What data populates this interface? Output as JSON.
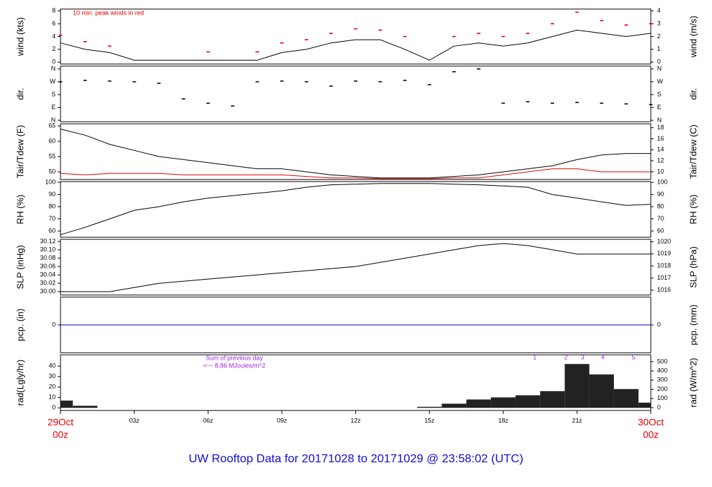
{
  "chart_data": [
    {
      "type": "line",
      "ylabel": "wind (kts)",
      "y2label": "wind (m/s)",
      "notes": [
        "10 min. peak winds in red"
      ],
      "xlim": [
        0,
        24
      ],
      "x": [
        0,
        1,
        2,
        3,
        4,
        5,
        6,
        7,
        8,
        9,
        10,
        11,
        12,
        13,
        14,
        15,
        16,
        17,
        18,
        19,
        20,
        21,
        22,
        23,
        24
      ],
      "ylim": [
        -0.3,
        8.3
      ],
      "yticks": [
        0,
        2,
        4,
        6,
        8
      ],
      "y2lim": [
        -0.15,
        4.15
      ],
      "y2ticks": [
        0,
        1,
        2,
        3,
        4
      ],
      "series": [
        {
          "color": "#000000",
          "values": [
            3,
            2,
            1.5,
            0.3,
            0.3,
            0.3,
            0.3,
            0.3,
            0.3,
            1.5,
            2,
            3,
            3.5,
            3.5,
            2,
            0.3,
            2.5,
            3,
            2.5,
            3,
            4,
            5,
            4.5,
            4,
            4.5
          ]
        },
        {
          "type": "scatter",
          "color": "#e00000",
          "values": [
            4.2,
            3.2,
            2.5,
            null,
            null,
            null,
            1.6,
            null,
            1.6,
            3,
            3.5,
            4.5,
            5.2,
            5,
            4,
            null,
            4,
            4.5,
            4,
            4.5,
            6,
            7.8,
            6.5,
            5.8,
            6
          ]
        }
      ]
    },
    {
      "type": "scatter",
      "ylabel": "dir.",
      "y2label": "dir.",
      "xlim": [
        0,
        24
      ],
      "x": [
        0,
        1,
        2,
        3,
        4,
        5,
        6,
        7,
        8,
        9,
        10,
        11,
        12,
        13,
        14,
        15,
        16,
        17,
        18,
        19,
        20,
        21,
        22,
        23,
        24
      ],
      "ylim": [
        -10,
        380
      ],
      "yticks": [
        {
          "value": 360,
          "label": "N"
        },
        {
          "value": 270,
          "label": "W"
        },
        {
          "value": 180,
          "label": "S"
        },
        {
          "value": 90,
          "label": "E"
        },
        {
          "value": 0,
          "label": "N"
        }
      ],
      "y2lim": [
        -10,
        380
      ],
      "y2ticks": [
        {
          "value": 360,
          "label": "N"
        },
        {
          "value": 270,
          "label": "W"
        },
        {
          "value": 180,
          "label": "S"
        },
        {
          "value": 90,
          "label": "E"
        },
        {
          "value": 0,
          "label": "N"
        }
      ],
      "series": [
        {
          "color": "#000000",
          "values": [
            270,
            280,
            275,
            270,
            260,
            150,
            120,
            100,
            270,
            275,
            270,
            240,
            275,
            270,
            280,
            250,
            340,
            360,
            120,
            130,
            120,
            125,
            120,
            115,
            110
          ]
        }
      ]
    },
    {
      "type": "line",
      "ylabel": "Tair/Tdew (F)",
      "y2label": "Tair/Tdew (C)",
      "xlim": [
        0,
        24
      ],
      "x": [
        0,
        1,
        2,
        3,
        4,
        5,
        6,
        7,
        8,
        9,
        10,
        11,
        12,
        13,
        14,
        15,
        16,
        17,
        18,
        19,
        20,
        21,
        22,
        23,
        24
      ],
      "ylim": [
        47.5,
        65.7
      ],
      "yticks": [
        50,
        55,
        60,
        65
      ],
      "y2lim": [
        8.6,
        18.7
      ],
      "y2ticks": [
        10,
        12,
        14,
        16,
        18
      ],
      "series": [
        {
          "color": "#000000",
          "values": [
            64,
            62,
            59,
            57,
            55,
            54,
            53,
            52,
            51,
            51,
            50,
            49,
            48.5,
            48,
            48,
            48,
            48.5,
            49,
            50,
            51,
            52,
            54,
            55.5,
            56,
            56
          ]
        },
        {
          "color": "#e00000",
          "values": [
            49.5,
            49,
            49.5,
            49.5,
            49.5,
            49,
            49,
            49,
            49,
            49,
            48.5,
            48,
            48,
            47.8,
            47.8,
            47.8,
            48,
            48,
            49,
            50,
            51,
            51,
            50,
            50,
            50
          ]
        }
      ]
    },
    {
      "type": "line",
      "ylabel": "RH (%)",
      "y2label": "RH (%)",
      "xlim": [
        0,
        24
      ],
      "x": [
        0,
        1,
        2,
        3,
        4,
        5,
        6,
        7,
        8,
        9,
        10,
        11,
        12,
        13,
        14,
        15,
        16,
        17,
        18,
        19,
        20,
        21,
        22,
        23,
        24
      ],
      "ylim": [
        54.9,
        100.6
      ],
      "yticks": [
        60,
        70,
        80,
        90,
        100
      ],
      "y2lim": [
        54.9,
        100.6
      ],
      "y2ticks": [
        60,
        70,
        80,
        90,
        100
      ],
      "series": [
        {
          "color": "#000000",
          "values": [
            57,
            63,
            70,
            77,
            80,
            84,
            87,
            89,
            91,
            93,
            96,
            98,
            98.5,
            99,
            99,
            99,
            98.5,
            98,
            97,
            96,
            90,
            87,
            84,
            81,
            82
          ]
        }
      ]
    },
    {
      "type": "line",
      "ylabel": "SLP (inHg)",
      "y2label": "SLP (hPa)",
      "xlim": [
        0,
        24
      ],
      "x": [
        0,
        1,
        2,
        3,
        4,
        5,
        6,
        7,
        8,
        9,
        10,
        11,
        12,
        13,
        14,
        15,
        16,
        17,
        18,
        19,
        20,
        21,
        22,
        23,
        24
      ],
      "ylim": [
        29.992,
        30.125
      ],
      "yticks": [
        {
          "value": 30,
          "label": "30.00"
        },
        {
          "value": 30.02,
          "label": "30.02"
        },
        {
          "value": 30.04,
          "label": "30.04"
        },
        {
          "value": 30.06,
          "label": "30.06"
        },
        {
          "value": 30.08,
          "label": "30.08"
        },
        {
          "value": 30.1,
          "label": "30.10"
        },
        {
          "value": 30.12,
          "label": "30.12"
        }
      ],
      "y2lim": [
        1015.6,
        1020.2
      ],
      "y2ticks": [
        1016,
        1017,
        1018,
        1019,
        1020
      ],
      "series": [
        {
          "color": "#000000",
          "values": [
            30.0,
            30.0,
            30.0,
            30.01,
            30.02,
            30.025,
            30.03,
            30.035,
            30.04,
            30.045,
            30.05,
            30.055,
            30.06,
            30.07,
            30.08,
            30.09,
            30.1,
            30.11,
            30.115,
            30.11,
            30.1,
            30.09,
            30.09,
            30.09,
            30.09
          ]
        }
      ]
    },
    {
      "type": "line",
      "ylabel": "pcp. (in)",
      "y2label": "pcp. (mm)",
      "xlim": [
        0,
        24
      ],
      "x": [
        0,
        24
      ],
      "ylim": [
        -1,
        1
      ],
      "yticks": [
        0
      ],
      "y2lim": [
        -1,
        1
      ],
      "y2ticks": [
        0
      ],
      "series": [
        {
          "color": "#0000cc",
          "values": [
            0,
            0
          ]
        }
      ]
    },
    {
      "type": "bar",
      "ylabel": "rad(Lgly/hr)",
      "y2label": "rad (W/m^2)",
      "notes": [
        "Sum of previous day",
        "<--- 8.86 MJoules/m^2",
        "1",
        "2",
        "3",
        "4",
        "5"
      ],
      "xlim": [
        0,
        24
      ],
      "x": [
        0,
        1,
        2,
        3,
        4,
        5,
        6,
        7,
        8,
        9,
        10,
        11,
        12,
        13,
        14,
        15,
        16,
        17,
        18,
        19,
        20,
        21,
        22,
        23,
        24
      ],
      "ylim": [
        -2.5,
        50.8
      ],
      "yticks": [
        0,
        10,
        20,
        30,
        40
      ],
      "y2lim": [
        -30,
        575
      ],
      "y2ticks": [
        0,
        100,
        200,
        300,
        400,
        500
      ],
      "series": [
        {
          "color": "#222222",
          "values": [
            7,
            2,
            0,
            0,
            0,
            0,
            0,
            0,
            0,
            0,
            0,
            0,
            0,
            0,
            0,
            1,
            4,
            8,
            10,
            12,
            16,
            42,
            32,
            18,
            5
          ]
        }
      ],
      "xticks": [
        {
          "value": 0,
          "label": "00z"
        },
        {
          "value": 3,
          "label": "03z"
        },
        {
          "value": 6,
          "label": "06z"
        },
        {
          "value": 9,
          "label": "09z"
        },
        {
          "value": 12,
          "label": "12z"
        },
        {
          "value": 15,
          "label": "15z"
        },
        {
          "value": 18,
          "label": "18z"
        },
        {
          "value": 21,
          "label": "21z"
        },
        {
          "value": 24,
          "label": "00z"
        }
      ],
      "date_labels": [
        "29Oct",
        "30Oct"
      ]
    }
  ],
  "title": "UW Rooftop Data for 20171028  to  20171029 @ 23:58:02  (UTC)"
}
